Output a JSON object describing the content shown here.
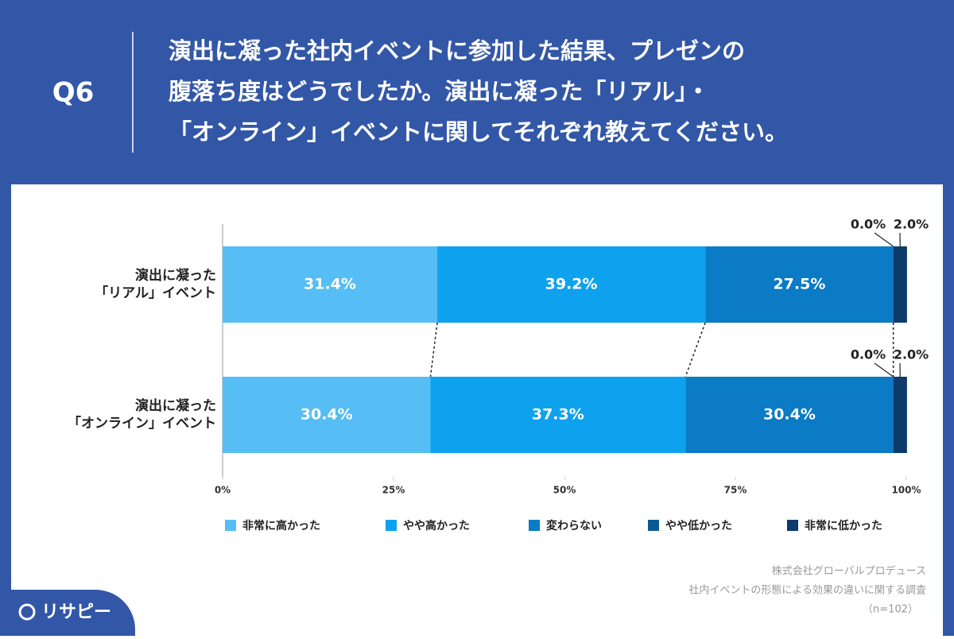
{
  "header": {
    "label": "Q6",
    "question": [
      "演出に凝った社内イベントに参加した結果、プレゼンの",
      "腹落ち度はどうでしたか。演出に凝った「リアル」・",
      "「オンライン」イベントに関してそれぞれ教えてください。"
    ]
  },
  "chart_data": {
    "type": "stacked-bar-horizontal",
    "categories": [
      [
        "演出に凝った",
        "「リアル」イベント"
      ],
      [
        "演出に凝った",
        "「オンライン」イベント"
      ]
    ],
    "series": [
      {
        "name": "非常に高かった",
        "color": "#56bdf5",
        "values": [
          31.4,
          30.4
        ],
        "value_labels": [
          "31.4%",
          "30.4%"
        ]
      },
      {
        "name": "やや高かった",
        "color": "#0ea2ee",
        "values": [
          39.2,
          37.3
        ],
        "value_labels": [
          "39.2%",
          "37.3%"
        ]
      },
      {
        "name": "変わらない",
        "color": "#0a7bc4",
        "values": [
          27.5,
          30.4
        ],
        "value_labels": [
          "27.5%",
          "30.4%"
        ]
      },
      {
        "name": "やや低かった",
        "color": "#0b5a94",
        "values": [
          0.0,
          0.0
        ],
        "value_labels": [
          "0.0%",
          "0.0%"
        ]
      },
      {
        "name": "非常に低かった",
        "color": "#0b3a6b",
        "values": [
          2.0,
          2.0
        ],
        "value_labels": [
          "2.0%",
          "2.0%"
        ]
      }
    ],
    "xlim": [
      0,
      100
    ],
    "xticks": [
      {
        "value": 0,
        "label": "0%"
      },
      {
        "value": 25,
        "label": "25%"
      },
      {
        "value": 50,
        "label": "50%"
      },
      {
        "value": 75,
        "label": "75%"
      },
      {
        "value": 100,
        "label": "100%"
      }
    ],
    "legend": "bottom"
  },
  "source": [
    "株式会社グローバルプロデュース",
    "社内イベントの形態による効果の違いに関する調査",
    "（n=102）"
  ],
  "brand": "リサピー"
}
